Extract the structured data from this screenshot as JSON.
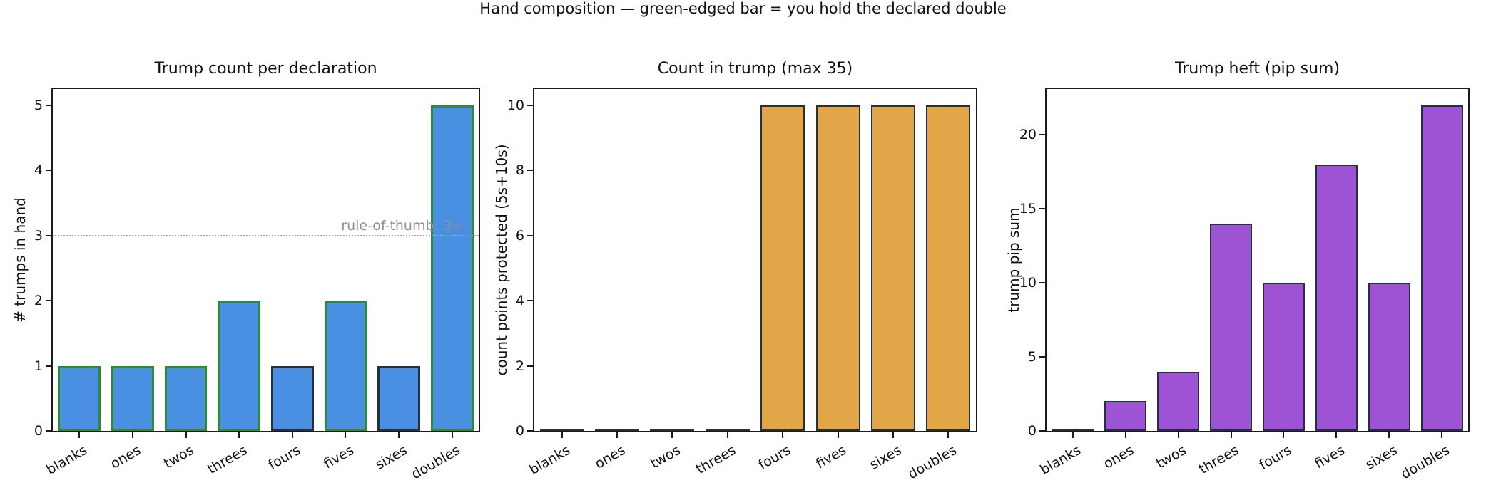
{
  "figure": {
    "suptitle": "Hand composition — green-edged bar = you hold the declared double"
  },
  "colors": {
    "axis": "#1a1a1a",
    "text": "#111111",
    "blue_fill": "#4a90e2",
    "green_edge": "#2e8b2e",
    "dark_edge": "#22303f",
    "orange_fill": "#e2a649",
    "purple_fill": "#9e52d4",
    "guide_line_gray": "#a8a8a8",
    "annotation_gray": "#8f8f8f"
  },
  "chart_data": [
    {
      "type": "bar",
      "title": "Trump count per declaration",
      "ylabel": "# trumps in hand",
      "categories": [
        "blanks",
        "ones",
        "twos",
        "threes",
        "fours",
        "fives",
        "sixes",
        "doubles"
      ],
      "values": [
        1,
        1,
        1,
        2,
        1,
        2,
        1,
        5
      ],
      "ylim": [
        0,
        5.25
      ],
      "yticks": [
        0,
        1,
        2,
        3,
        4,
        5
      ],
      "bar_fill": "#4a90e2",
      "bar_edges": [
        "#2e8b2e",
        "#2e8b2e",
        "#2e8b2e",
        "#2e8b2e",
        "#22303f",
        "#2e8b2e",
        "#22303f",
        "#2e8b2e"
      ],
      "edge_width": 3,
      "grid": false,
      "guide_line": {
        "y": 3,
        "style": "dotted",
        "color": "#a8a8a8",
        "label": "rule-of-thumb: 3+",
        "label_color": "#8f8f8f"
      }
    },
    {
      "type": "bar",
      "title": "Count in trump (max 35)",
      "ylabel": "count points protected (5s+10s)",
      "categories": [
        "blanks",
        "ones",
        "twos",
        "threes",
        "fours",
        "fives",
        "sixes",
        "doubles"
      ],
      "values": [
        0,
        0,
        0,
        0,
        10,
        10,
        10,
        10
      ],
      "ylim": [
        0,
        10.5
      ],
      "yticks": [
        0,
        2,
        4,
        6,
        8,
        10
      ],
      "bar_fill": "#e2a649",
      "bar_edge": "#22303f",
      "edge_width": 2,
      "grid": false
    },
    {
      "type": "bar",
      "title": "Trump heft (pip sum)",
      "ylabel": "trump pip sum",
      "categories": [
        "blanks",
        "ones",
        "twos",
        "threes",
        "fours",
        "fives",
        "sixes",
        "doubles"
      ],
      "values": [
        0,
        2,
        4,
        14,
        10,
        18,
        10,
        22
      ],
      "ylim": [
        0,
        23.1
      ],
      "yticks": [
        0,
        5,
        10,
        15,
        20
      ],
      "bar_fill": "#9e52d4",
      "bar_edge": "#22303f",
      "edge_width": 2,
      "grid": false
    }
  ]
}
